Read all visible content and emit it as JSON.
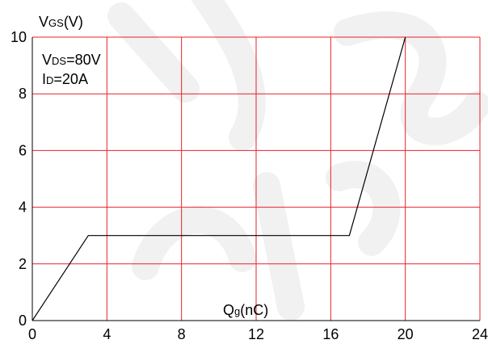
{
  "chart_data": {
    "type": "line",
    "title": "",
    "ylabel": {
      "main": "V",
      "sub": "GS",
      "unit": "(V)"
    },
    "xlabel": {
      "main": "Q",
      "sub": "g",
      "unit": "(nC)"
    },
    "xlim": [
      0,
      24
    ],
    "ylim": [
      0,
      10
    ],
    "x_ticks": [
      0,
      4,
      8,
      12,
      16,
      20,
      24
    ],
    "y_ticks": [
      0,
      2,
      4,
      6,
      8,
      10
    ],
    "grid": true,
    "grid_color": "#e8202a",
    "line_color": "#000000",
    "series": [
      {
        "x": [
          0,
          3,
          17,
          20
        ],
        "y": [
          0,
          3,
          3,
          10
        ]
      }
    ],
    "annotations": [
      {
        "main": "V",
        "sub": "DS",
        "rest": "=80V"
      },
      {
        "main": "I",
        "sub": "D",
        "rest": "=20A"
      }
    ]
  }
}
